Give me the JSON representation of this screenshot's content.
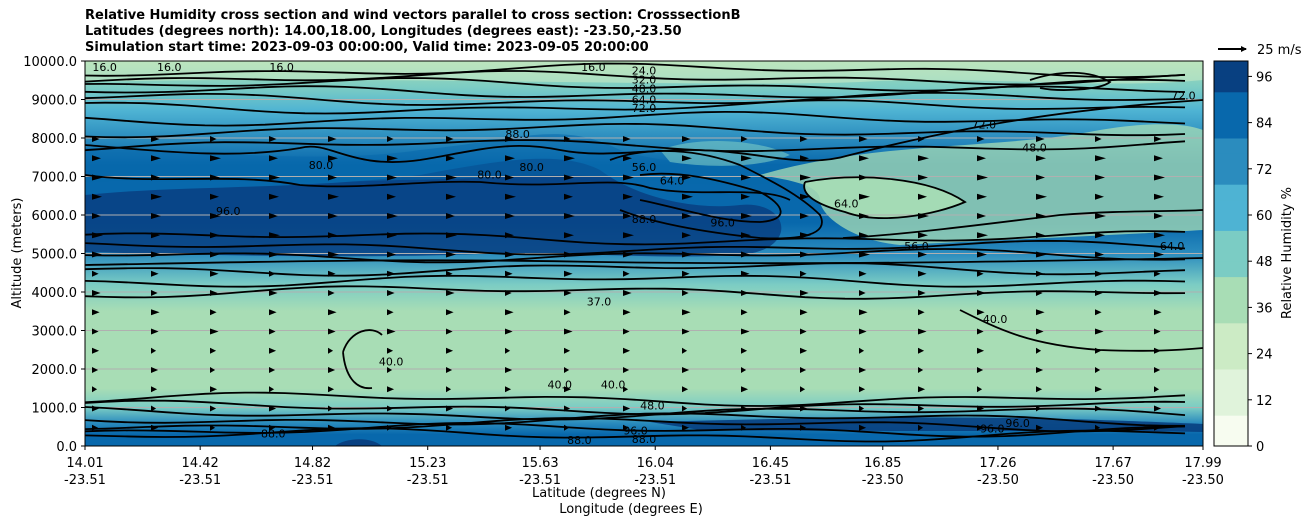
{
  "chart_data": {
    "type": "heatmap",
    "title_lines": [
      "Relative Humidity cross section and wind vectors parallel to cross section: CrosssectionB",
      "Latitudes (degrees north): 14.00,18.00, Longitudes (degrees east): -23.50,-23.50",
      "Simulation start time: 2023-09-03 00:00:00, Valid time: 2023-09-05 20:00:00"
    ],
    "ylabel": "Altitude (meters)",
    "xlabel_lines": [
      "Latitude (degrees N)",
      "Longitude (degrees E)"
    ],
    "ylim": [
      0,
      10000
    ],
    "y_ticks": [
      "0.0",
      "1000.0",
      "2000.0",
      "3000.0",
      "4000.0",
      "5000.0",
      "6000.0",
      "7000.0",
      "8000.0",
      "9000.0",
      "10000.0"
    ],
    "x_ticks": [
      {
        "lat": "14.01",
        "lon": "-23.51"
      },
      {
        "lat": "14.42",
        "lon": "-23.51"
      },
      {
        "lat": "14.82",
        "lon": "-23.51"
      },
      {
        "lat": "15.23",
        "lon": "-23.51"
      },
      {
        "lat": "15.63",
        "lon": "-23.51"
      },
      {
        "lat": "16.04",
        "lon": "-23.51"
      },
      {
        "lat": "16.45",
        "lon": "-23.51"
      },
      {
        "lat": "16.85",
        "lon": "-23.50"
      },
      {
        "lat": "17.26",
        "lon": "-23.50"
      },
      {
        "lat": "17.67",
        "lon": "-23.50"
      },
      {
        "lat": "17.99",
        "lon": "-23.50"
      }
    ],
    "colorbar": {
      "label": "Relative Humidity %",
      "ticks": [
        "0",
        "12",
        "24",
        "36",
        "48",
        "60",
        "72",
        "84",
        "96"
      ],
      "range": [
        0,
        100
      ]
    },
    "quiver_key": "25 m/s",
    "grid": true,
    "rh_profile": [
      {
        "z": 0,
        "rh": 88
      },
      {
        "z": 300,
        "rh": 92
      },
      {
        "z": 600,
        "rh": 80
      },
      {
        "z": 1000,
        "rh": 52
      },
      {
        "z": 1500,
        "rh": 40
      },
      {
        "z": 2500,
        "rh": 38
      },
      {
        "z": 3500,
        "rh": 40
      },
      {
        "z": 4200,
        "rh": 52
      },
      {
        "z": 5000,
        "rh": 70
      },
      {
        "z": 5800,
        "rh": 88
      },
      {
        "z": 6500,
        "rh": 90
      },
      {
        "z": 7300,
        "rh": 84
      },
      {
        "z": 8000,
        "rh": 72
      },
      {
        "z": 8700,
        "rh": 68
      },
      {
        "z": 9300,
        "rh": 55
      },
      {
        "z": 10000,
        "rh": 40
      }
    ],
    "contour_labels": [
      {
        "text": "16.0",
        "lat": 14.08,
        "z": 9850
      },
      {
        "text": "16.0",
        "lat": 14.31,
        "z": 9850
      },
      {
        "text": "16.0",
        "lat": 14.71,
        "z": 9850
      },
      {
        "text": "16.0",
        "lat": 15.82,
        "z": 9850
      },
      {
        "text": "24.0",
        "lat": 16.0,
        "z": 9750
      },
      {
        "text": "32.0",
        "lat": 16.0,
        "z": 9520
      },
      {
        "text": "48.0",
        "lat": 16.0,
        "z": 9280
      },
      {
        "text": "64.0",
        "lat": 16.0,
        "z": 9000
      },
      {
        "text": "72.0",
        "lat": 16.0,
        "z": 8780
      },
      {
        "text": "88.0",
        "lat": 15.55,
        "z": 8100
      },
      {
        "text": "80.0",
        "lat": 14.85,
        "z": 7300
      },
      {
        "text": "80.0",
        "lat": 15.45,
        "z": 7050
      },
      {
        "text": "80.0",
        "lat": 15.6,
        "z": 7250
      },
      {
        "text": "56.0",
        "lat": 16.0,
        "z": 7250
      },
      {
        "text": "64.0",
        "lat": 16.1,
        "z": 6900
      },
      {
        "text": "96.0",
        "lat": 14.52,
        "z": 6100
      },
      {
        "text": "88.0",
        "lat": 16.0,
        "z": 5900
      },
      {
        "text": "96.0",
        "lat": 16.28,
        "z": 5800
      },
      {
        "text": "64.0",
        "lat": 16.72,
        "z": 6300
      },
      {
        "text": "56.0",
        "lat": 16.97,
        "z": 5200
      },
      {
        "text": "72.0",
        "lat": 17.21,
        "z": 8350
      },
      {
        "text": "48.0",
        "lat": 17.39,
        "z": 7750
      },
      {
        "text": "72.0",
        "lat": 17.92,
        "z": 9100
      },
      {
        "text": "64.0",
        "lat": 17.88,
        "z": 5200
      },
      {
        "text": "37.0",
        "lat": 15.84,
        "z": 3750
      },
      {
        "text": "40.0",
        "lat": 15.1,
        "z": 2200
      },
      {
        "text": "40.0",
        "lat": 15.7,
        "z": 1600
      },
      {
        "text": "40.0",
        "lat": 15.89,
        "z": 1600
      },
      {
        "text": "40.0",
        "lat": 17.25,
        "z": 3300
      },
      {
        "text": "48.0",
        "lat": 16.03,
        "z": 1050
      },
      {
        "text": "96.0",
        "lat": 15.97,
        "z": 400
      },
      {
        "text": "88.0",
        "lat": 16.0,
        "z": 180
      },
      {
        "text": "88.0",
        "lat": 14.68,
        "z": 320
      },
      {
        "text": "88.0",
        "lat": 15.77,
        "z": 160
      },
      {
        "text": "96.0",
        "lat": 17.24,
        "z": 450
      },
      {
        "text": "96.0",
        "lat": 17.33,
        "z": 600
      }
    ]
  },
  "colors": {
    "cmap": [
      "#f7fcf0",
      "#e0f3db",
      "#ccebc5",
      "#a8ddb5",
      "#7bccc4",
      "#4eb3d3",
      "#2b8cbe",
      "#0868ac",
      "#084081"
    ],
    "contour": "#000000",
    "grid": "#b0b0b0"
  }
}
